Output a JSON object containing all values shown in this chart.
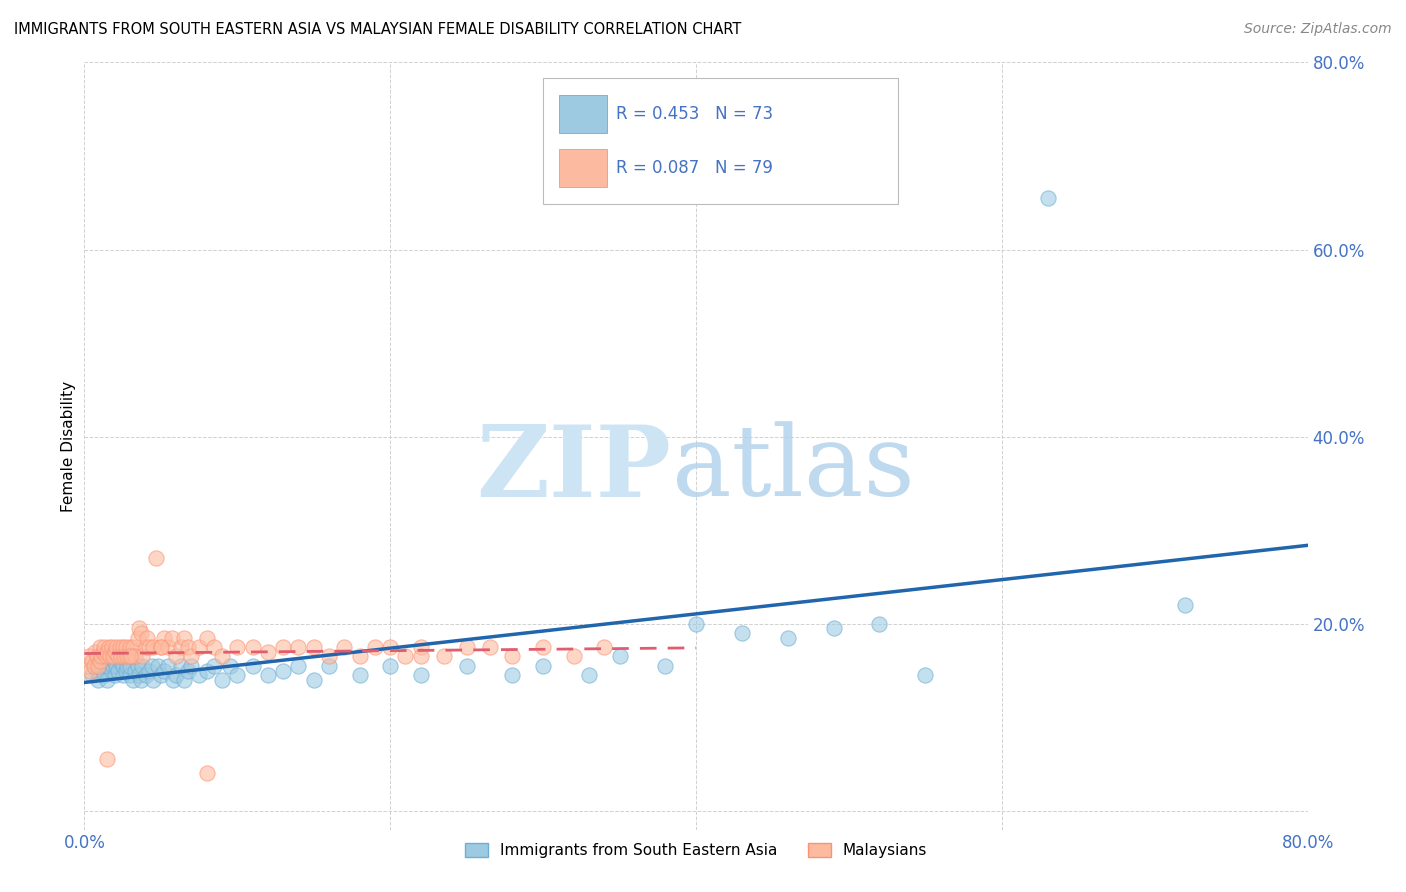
{
  "title": "IMMIGRANTS FROM SOUTH EASTERN ASIA VS MALAYSIAN FEMALE DISABILITY CORRELATION CHART",
  "source": "Source: ZipAtlas.com",
  "ylabel": "Female Disability",
  "xlim": [
    0.0,
    0.8
  ],
  "ylim": [
    -0.02,
    0.8
  ],
  "axis_color": "#4472C4",
  "blue_color": "#9ecae1",
  "pink_color": "#fcbba1",
  "blue_edge_color": "#6baed6",
  "pink_edge_color": "#fc9272",
  "blue_line_color": "#2166ac",
  "pink_line_color": "#e05c6e",
  "grid_color": "#cccccc",
  "blue_scatter_x": [
    0.005,
    0.007,
    0.008,
    0.009,
    0.01,
    0.01,
    0.012,
    0.013,
    0.015,
    0.015,
    0.016,
    0.018,
    0.019,
    0.02,
    0.02,
    0.021,
    0.022,
    0.023,
    0.025,
    0.025,
    0.027,
    0.028,
    0.03,
    0.03,
    0.032,
    0.033,
    0.035,
    0.036,
    0.037,
    0.038,
    0.04,
    0.042,
    0.044,
    0.045,
    0.048,
    0.05,
    0.052,
    0.055,
    0.058,
    0.06,
    0.063,
    0.065,
    0.068,
    0.07,
    0.075,
    0.08,
    0.085,
    0.09,
    0.095,
    0.1,
    0.11,
    0.12,
    0.13,
    0.14,
    0.15,
    0.16,
    0.18,
    0.2,
    0.22,
    0.25,
    0.28,
    0.3,
    0.33,
    0.35,
    0.38,
    0.4,
    0.43,
    0.46,
    0.49,
    0.52,
    0.55,
    0.63,
    0.72
  ],
  "blue_scatter_y": [
    0.145,
    0.155,
    0.15,
    0.14,
    0.155,
    0.16,
    0.15,
    0.145,
    0.155,
    0.14,
    0.16,
    0.15,
    0.155,
    0.145,
    0.16,
    0.155,
    0.15,
    0.16,
    0.145,
    0.155,
    0.15,
    0.155,
    0.145,
    0.155,
    0.14,
    0.15,
    0.155,
    0.145,
    0.14,
    0.155,
    0.145,
    0.15,
    0.155,
    0.14,
    0.155,
    0.145,
    0.15,
    0.155,
    0.14,
    0.145,
    0.155,
    0.14,
    0.15,
    0.155,
    0.145,
    0.15,
    0.155,
    0.14,
    0.155,
    0.145,
    0.155,
    0.145,
    0.15,
    0.155,
    0.14,
    0.155,
    0.145,
    0.155,
    0.145,
    0.155,
    0.145,
    0.155,
    0.145,
    0.165,
    0.155,
    0.2,
    0.19,
    0.185,
    0.195,
    0.2,
    0.145,
    0.655,
    0.22
  ],
  "pink_scatter_x": [
    0.002,
    0.003,
    0.004,
    0.005,
    0.006,
    0.007,
    0.008,
    0.009,
    0.01,
    0.01,
    0.011,
    0.012,
    0.013,
    0.014,
    0.015,
    0.016,
    0.017,
    0.018,
    0.019,
    0.02,
    0.021,
    0.022,
    0.023,
    0.024,
    0.025,
    0.026,
    0.027,
    0.028,
    0.03,
    0.031,
    0.032,
    0.033,
    0.035,
    0.036,
    0.037,
    0.038,
    0.04,
    0.041,
    0.042,
    0.045,
    0.047,
    0.05,
    0.052,
    0.055,
    0.057,
    0.06,
    0.063,
    0.065,
    0.068,
    0.07,
    0.075,
    0.08,
    0.085,
    0.09,
    0.1,
    0.11,
    0.12,
    0.13,
    0.15,
    0.16,
    0.17,
    0.18,
    0.19,
    0.2,
    0.21,
    0.22,
    0.235,
    0.25,
    0.265,
    0.28,
    0.3,
    0.32,
    0.34,
    0.22,
    0.14,
    0.08,
    0.05,
    0.03,
    0.015
  ],
  "pink_scatter_y": [
    0.155,
    0.165,
    0.15,
    0.16,
    0.155,
    0.17,
    0.165,
    0.155,
    0.175,
    0.16,
    0.165,
    0.17,
    0.175,
    0.165,
    0.17,
    0.175,
    0.165,
    0.175,
    0.165,
    0.17,
    0.175,
    0.165,
    0.175,
    0.165,
    0.175,
    0.165,
    0.175,
    0.165,
    0.175,
    0.165,
    0.175,
    0.165,
    0.185,
    0.195,
    0.19,
    0.165,
    0.175,
    0.185,
    0.175,
    0.175,
    0.27,
    0.175,
    0.185,
    0.175,
    0.185,
    0.165,
    0.175,
    0.185,
    0.175,
    0.165,
    0.175,
    0.185,
    0.175,
    0.165,
    0.175,
    0.175,
    0.17,
    0.175,
    0.175,
    0.165,
    0.175,
    0.165,
    0.175,
    0.175,
    0.165,
    0.175,
    0.165,
    0.175,
    0.175,
    0.165,
    0.175,
    0.165,
    0.175,
    0.165,
    0.175,
    0.04,
    0.175,
    0.165,
    0.055
  ]
}
